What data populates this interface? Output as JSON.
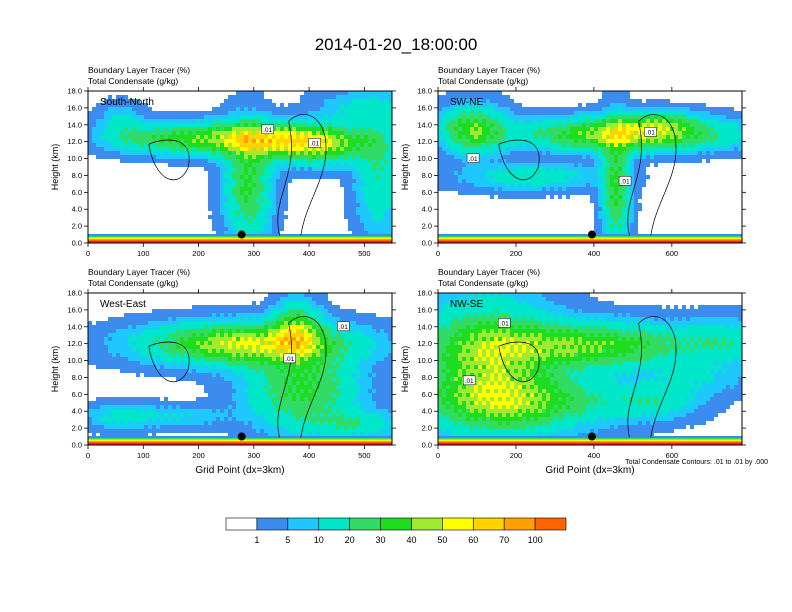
{
  "title": "2014-01-20_18:00:00",
  "colorbar": {
    "labels": [
      "1",
      "5",
      "10",
      "20",
      "30",
      "40",
      "50",
      "60",
      "70",
      "100"
    ],
    "colors": [
      "#ffffff",
      "#3c8cf0",
      "#1ec8ff",
      "#00e6c8",
      "#32dc64",
      "#1edc1e",
      "#a0eb32",
      "#ffff00",
      "#ffd200",
      "#ffa000",
      "#ff6400",
      "#ff1e1e"
    ]
  },
  "contour_note": "Total Condensate Contours: .01 to .01 by .000",
  "chart_data": [
    {
      "type": "heatmap",
      "subtitle_left": "Boundary Layer Tracer",
      "subtitle_left_unit": "(%)",
      "subtitle_right": "Total Condensate",
      "subtitle_right_unit": "(g/kg)",
      "panel_label": "South-North",
      "ylabel": "Height (km)",
      "xlabel": "",
      "xlim": [
        0,
        550
      ],
      "ylim": [
        0,
        18
      ],
      "xticks": [
        "0",
        "100",
        "200",
        "300",
        "400",
        "500"
      ],
      "yticks": [
        "0.0",
        "2.0",
        "4.0",
        "6.0",
        "8.0",
        "10.0",
        "12.0",
        "14.0",
        "16.0",
        "18.0"
      ],
      "contour_labels": [
        {
          "text": ".01",
          "x": 325,
          "y": 13.4
        },
        {
          "text": ".01",
          "x": 410,
          "y": 11.8
        }
      ],
      "marker": {
        "x": 278,
        "y": 1.0
      }
    },
    {
      "type": "heatmap",
      "subtitle_left": "Boundary Layer Tracer",
      "subtitle_left_unit": "(%)",
      "subtitle_right": "Total Condensate",
      "subtitle_right_unit": "(g/kg)",
      "panel_label": "SW-NE",
      "ylabel": "Height (km)",
      "xlabel": "",
      "xlim": [
        0,
        780
      ],
      "ylim": [
        0,
        18
      ],
      "xticks": [
        "0",
        "200",
        "400",
        "600"
      ],
      "yticks": [
        "0.0",
        "2.0",
        "4.0",
        "6.0",
        "8.0",
        "10.0",
        "12.0",
        "14.0",
        "16.0",
        "18.0"
      ],
      "contour_labels": [
        {
          "text": ".01",
          "x": 90,
          "y": 10.0
        },
        {
          "text": ".01",
          "x": 480,
          "y": 7.3
        },
        {
          "text": ".01",
          "x": 545,
          "y": 13.1
        }
      ],
      "marker": {
        "x": 395,
        "y": 1.0
      }
    },
    {
      "type": "heatmap",
      "subtitle_left": "Boundary Layer Tracer",
      "subtitle_left_unit": "(%)",
      "subtitle_right": "Total Condensate",
      "subtitle_right_unit": "(g/kg)",
      "panel_label": "West-East",
      "ylabel": "Height (km)",
      "xlabel": "Grid Point (dx=3km)",
      "xlim": [
        0,
        550
      ],
      "ylim": [
        0,
        18
      ],
      "xticks": [
        "0",
        "100",
        "200",
        "300",
        "400",
        "500"
      ],
      "yticks": [
        "0.0",
        "2.0",
        "4.0",
        "6.0",
        "8.0",
        "10.0",
        "12.0",
        "14.0",
        "16.0",
        "18.0"
      ],
      "contour_labels": [
        {
          "text": ".01",
          "x": 462,
          "y": 14.0
        },
        {
          "text": ".01",
          "x": 365,
          "y": 10.2
        }
      ],
      "marker": {
        "x": 278,
        "y": 1.0
      }
    },
    {
      "type": "heatmap",
      "subtitle_left": "Boundary Layer Tracer",
      "subtitle_left_unit": "(%)",
      "subtitle_right": "Total Condensate",
      "subtitle_right_unit": "(g/kg)",
      "panel_label": "NW-SE",
      "ylabel": "Height (km)",
      "xlabel": "Grid Point (dx=3km)",
      "xlim": [
        0,
        780
      ],
      "ylim": [
        0,
        18
      ],
      "xticks": [
        "0",
        "200",
        "400",
        "600"
      ],
      "yticks": [
        "0.0",
        "2.0",
        "4.0",
        "6.0",
        "8.0",
        "10.0",
        "12.0",
        "14.0",
        "16.0",
        "18.0"
      ],
      "contour_labels": [
        {
          "text": ".01",
          "x": 170,
          "y": 14.4
        },
        {
          "text": ".01",
          "x": 80,
          "y": 7.6
        }
      ],
      "marker": {
        "x": 395,
        "y": 1.0
      }
    }
  ]
}
